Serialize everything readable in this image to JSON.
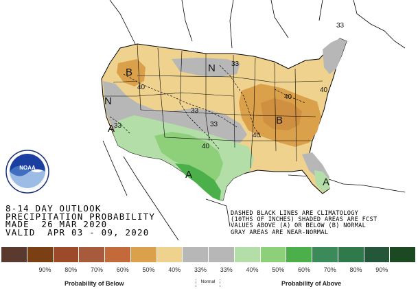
{
  "map": {
    "title_lines": [
      "8-14 DAY OUTLOOK",
      "PRECIPITATION PROBABILITY",
      "MADE  26 MAR 2020",
      "VALID  APR 03 - 09, 2020"
    ],
    "note_lines": [
      "DASHED BLACK LINES ARE CLIMATOLOGY",
      "(10THS OF INCHES) SHADED AREAS ARE FCST",
      "VALUES ABOVE (A) OR BELOW (B) NORMAL",
      "GRAY AREAS ARE NEAR-NORMAL"
    ],
    "logo_text": "NOAA",
    "region_labels": [
      {
        "text": "B",
        "meaning": "below"
      },
      {
        "text": "N",
        "meaning": "normal"
      },
      {
        "text": "N",
        "meaning": "normal"
      },
      {
        "text": "B",
        "meaning": "below"
      },
      {
        "text": "A",
        "meaning": "above"
      },
      {
        "text": "A",
        "meaning": "above"
      },
      {
        "text": "A",
        "meaning": "above"
      }
    ],
    "contour_labels": [
      "33",
      "40",
      "33",
      "33",
      "40",
      "40",
      "33",
      "40",
      "40",
      "33"
    ]
  },
  "legend": {
    "colors": [
      "#5a3a2e",
      "#7a3f12",
      "#9c4a2a",
      "#a85a3c",
      "#c46a3a",
      "#dba14a",
      "#f0d28f",
      "#b7b7b7",
      "#b7b7b7",
      "#b4dea8",
      "#8ecf7a",
      "#4bb04a",
      "#3a8a5a",
      "#2e7a4a",
      "#24573a",
      "#1b4a22"
    ],
    "tick_labels": [
      "90%",
      "80%",
      "70%",
      "60%",
      "50%",
      "40%",
      "33%",
      "33%",
      "40%",
      "50%",
      "60%",
      "70%",
      "80%",
      "90%"
    ],
    "below_label": "Probability of Below",
    "normal_label": "Normal",
    "above_label": "Probability of Above"
  }
}
